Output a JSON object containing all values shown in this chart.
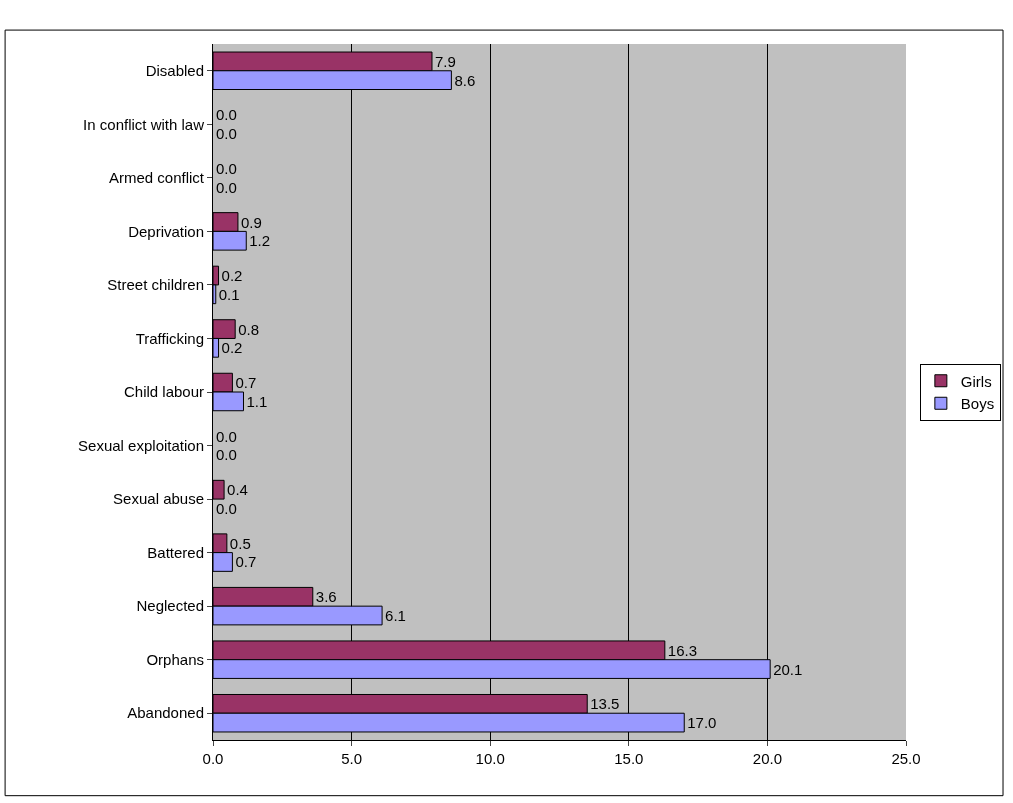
{
  "chart_data": {
    "type": "bar",
    "orientation": "horizontal",
    "categories": [
      "Disabled",
      "In conflict with law",
      "Armed conflict",
      "Deprivation",
      "Street children",
      "Trafficking",
      "Child labour",
      "Sexual exploitation",
      "Sexual abuse",
      "Battered",
      "Neglected",
      "Orphans",
      "Abandoned"
    ],
    "series": [
      {
        "name": "Girls",
        "color": "#993366",
        "values": [
          7.9,
          0,
          0,
          0.9,
          0.2,
          0.8,
          0.7,
          0,
          0.4,
          0.5,
          3.6,
          16.3,
          13.5
        ],
        "value_labels": [
          "7.9",
          "0.0",
          "0.0",
          "0.9",
          "0.2",
          "0.8",
          "0.7",
          "0.0",
          "0.4",
          "0.5",
          "3.6",
          "16.3",
          "13.5"
        ]
      },
      {
        "name": "Boys",
        "color": "#9999ff",
        "values": [
          8.6,
          0,
          0,
          1.2,
          0.1,
          0.2,
          1.1,
          0,
          0,
          0.7,
          6.1,
          20.1,
          17.0
        ],
        "value_labels": [
          "8.6",
          "0.0",
          "0.0",
          "1.2",
          "0.1",
          "0.2",
          "1.1",
          "0.0",
          "0.0",
          "0.7",
          "6.1",
          "20.1",
          "17.0"
        ]
      }
    ],
    "xlim": [
      0,
      25
    ],
    "xticks": [
      {
        "value": 0,
        "label": "0.0"
      },
      {
        "value": 5,
        "label": "5.0"
      },
      {
        "value": 10,
        "label": "10.0"
      },
      {
        "value": 15,
        "label": "15.0"
      },
      {
        "value": 20,
        "label": "20.0"
      },
      {
        "value": 25,
        "label": "25.0"
      }
    ],
    "grid": "x",
    "legend": "right"
  }
}
